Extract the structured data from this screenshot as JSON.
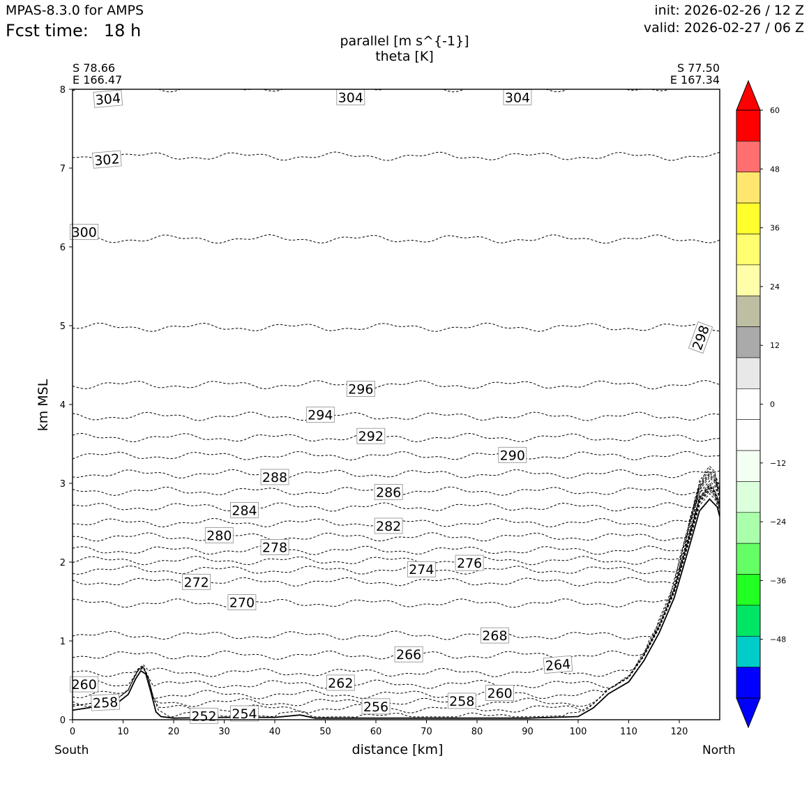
{
  "header": {
    "model": "MPAS-8.3.0 for AMPS",
    "fcst_label": "Fcst time:",
    "fcst_value": "18 h",
    "init": "init: 2026-02-26 / 12 Z",
    "valid": "valid: 2026-02-27 / 06 Z"
  },
  "plot_title": {
    "line1": "parallel [m s^{-1}]",
    "line2": "theta [K]"
  },
  "endpoints": {
    "left": {
      "lat": "S 78.66",
      "lon": "E 166.47"
    },
    "right": {
      "lat": "S 77.50",
      "lon": "E 167.34"
    }
  },
  "directions": {
    "left": "South",
    "right": "North"
  },
  "chart_data": {
    "type": "cross-section contour",
    "xlabel": "distance [km]",
    "ylabel": "km MSL",
    "xlim": [
      0,
      128
    ],
    "ylim": [
      0,
      8
    ],
    "xticks": [
      0,
      10,
      20,
      30,
      40,
      50,
      60,
      70,
      80,
      90,
      100,
      110,
      120
    ],
    "yticks": [
      0,
      1,
      2,
      3,
      4,
      5,
      6,
      7,
      8
    ],
    "terrain": [
      [
        0,
        0.12
      ],
      [
        5,
        0.17
      ],
      [
        9,
        0.22
      ],
      [
        11,
        0.32
      ],
      [
        12.5,
        0.52
      ],
      [
        13.5,
        0.62
      ],
      [
        14.5,
        0.58
      ],
      [
        15.5,
        0.35
      ],
      [
        16.5,
        0.1
      ],
      [
        17.5,
        0.04
      ],
      [
        20,
        0.02
      ],
      [
        30,
        0.03
      ],
      [
        40,
        0.03
      ],
      [
        45,
        0.06
      ],
      [
        48,
        0.02
      ],
      [
        60,
        0.02
      ],
      [
        80,
        0.02
      ],
      [
        90,
        0.02
      ],
      [
        100,
        0.04
      ],
      [
        103,
        0.15
      ],
      [
        106,
        0.33
      ],
      [
        110,
        0.48
      ],
      [
        113,
        0.75
      ],
      [
        116,
        1.1
      ],
      [
        119,
        1.55
      ],
      [
        122,
        2.2
      ],
      [
        124,
        2.65
      ],
      [
        126,
        2.8
      ],
      [
        127.5,
        2.7
      ],
      [
        128,
        2.58
      ]
    ],
    "theta_levels": [
      {
        "value": 254,
        "height": 0.04
      },
      {
        "value": 256,
        "height": 0.14
      },
      {
        "value": 258,
        "height": 0.22
      },
      {
        "value": 260,
        "height": 0.32
      },
      {
        "value": 262,
        "height": 0.45
      },
      {
        "value": 264,
        "height": 0.6
      },
      {
        "value": 266,
        "height": 0.82
      },
      {
        "value": 268,
        "height": 1.07
      },
      {
        "value": 270,
        "height": 1.48
      },
      {
        "value": 272,
        "height": 1.75
      },
      {
        "value": 274,
        "height": 1.9
      },
      {
        "value": 276,
        "height": 2.02
      },
      {
        "value": 278,
        "height": 2.15
      },
      {
        "value": 280,
        "height": 2.32
      },
      {
        "value": 282,
        "height": 2.5
      },
      {
        "value": 284,
        "height": 2.7
      },
      {
        "value": 286,
        "height": 2.9
      },
      {
        "value": 288,
        "height": 3.12
      },
      {
        "value": 290,
        "height": 3.35
      },
      {
        "value": 292,
        "height": 3.58
      },
      {
        "value": 294,
        "height": 3.85
      },
      {
        "value": 296,
        "height": 4.25
      },
      {
        "value": 298,
        "height": 4.98
      },
      {
        "value": 300,
        "height": 6.1
      },
      {
        "value": 302,
        "height": 7.15
      },
      {
        "value": 304,
        "height": 8.02
      }
    ],
    "contour_labels": [
      {
        "text": "304",
        "x": 7,
        "y": 7.88,
        "rot": -5
      },
      {
        "text": "304",
        "x": 55,
        "y": 7.9,
        "rot": 0
      },
      {
        "text": "304",
        "x": 88,
        "y": 7.9,
        "rot": 0
      },
      {
        "text": "302",
        "x": 6.8,
        "y": 7.11,
        "rot": -5
      },
      {
        "text": "300",
        "x": 2.3,
        "y": 6.19,
        "rot": 0
      },
      {
        "text": "298",
        "x": 124.2,
        "y": 4.85,
        "rot": -70
      },
      {
        "text": "296",
        "x": 57,
        "y": 4.2,
        "rot": 0
      },
      {
        "text": "294",
        "x": 49,
        "y": 3.87,
        "rot": 0
      },
      {
        "text": "292",
        "x": 59,
        "y": 3.6,
        "rot": 0
      },
      {
        "text": "290",
        "x": 87,
        "y": 3.36,
        "rot": 0
      },
      {
        "text": "288",
        "x": 40,
        "y": 3.08,
        "rot": 0
      },
      {
        "text": "286",
        "x": 62.5,
        "y": 2.89,
        "rot": 0
      },
      {
        "text": "284",
        "x": 34,
        "y": 2.66,
        "rot": 0
      },
      {
        "text": "282",
        "x": 62.5,
        "y": 2.46,
        "rot": 0
      },
      {
        "text": "280",
        "x": 29,
        "y": 2.34,
        "rot": 0
      },
      {
        "text": "278",
        "x": 40,
        "y": 2.19,
        "rot": 0
      },
      {
        "text": "276",
        "x": 78.5,
        "y": 1.99,
        "rot": 0
      },
      {
        "text": "274",
        "x": 69,
        "y": 1.91,
        "rot": 0
      },
      {
        "text": "272",
        "x": 24.5,
        "y": 1.75,
        "rot": 0
      },
      {
        "text": "270",
        "x": 33.5,
        "y": 1.49,
        "rot": 0
      },
      {
        "text": "268",
        "x": 83.5,
        "y": 1.07,
        "rot": 0
      },
      {
        "text": "266",
        "x": 66.5,
        "y": 0.83,
        "rot": 0
      },
      {
        "text": "264",
        "x": 96,
        "y": 0.7,
        "rot": -5
      },
      {
        "text": "262",
        "x": 53,
        "y": 0.47,
        "rot": 0
      },
      {
        "text": "260",
        "x": 2.3,
        "y": 0.45,
        "rot": 0
      },
      {
        "text": "260",
        "x": 84.5,
        "y": 0.34,
        "rot": 0
      },
      {
        "text": "258",
        "x": 6.5,
        "y": 0.22,
        "rot": -3
      },
      {
        "text": "258",
        "x": 77,
        "y": 0.24,
        "rot": 0
      },
      {
        "text": "256",
        "x": 60,
        "y": 0.17,
        "rot": 0
      },
      {
        "text": "254",
        "x": 34,
        "y": 0.08,
        "rot": 0
      },
      {
        "text": "252",
        "x": 26,
        "y": 0.05,
        "rot": 0
      }
    ],
    "colorbar": {
      "ticks": [
        60,
        48,
        36,
        24,
        12,
        0,
        -12,
        -24,
        -36,
        -48
      ],
      "tick_labels": [
        "60",
        "48",
        "36",
        "24",
        "12",
        "0",
        "−12",
        "−24",
        "−36",
        "−48"
      ],
      "colors_top_to_bottom": [
        "#ff0000",
        "#ff6f6f",
        "#ffe66e",
        "#ffff2e",
        "#ffff70",
        "#ffffaa",
        "#bebea2",
        "#aaaaaa",
        "#e8e8e8",
        "#ffffff",
        "#ffffff",
        "#f4fff4",
        "#dcffdc",
        "#aaffaa",
        "#64ff64",
        "#22ff22",
        "#00e664",
        "#00cdc8",
        "#0000ff"
      ],
      "over_color": "#ff0000",
      "under_color": "#0000ff"
    }
  }
}
